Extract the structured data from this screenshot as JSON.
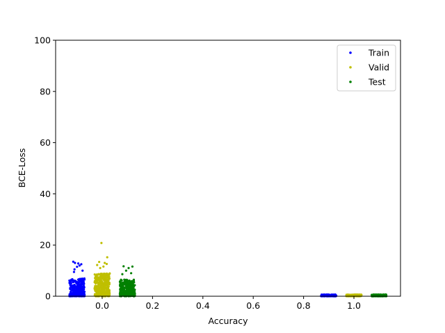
{
  "chart_data": {
    "type": "scatter",
    "title": "",
    "xlabel": "Accuracy",
    "ylabel": "BCE-Loss",
    "xlim": [
      -0.185,
      1.185
    ],
    "ylim": [
      0,
      100
    ],
    "xticks": [
      0.0,
      0.2,
      0.4,
      0.6,
      0.8,
      1.0
    ],
    "xtick_labels": [
      "0.0",
      "0.2",
      "0.4",
      "0.6",
      "0.8",
      "1.0"
    ],
    "yticks": [
      0,
      20,
      40,
      60,
      80,
      100
    ],
    "ytick_labels": [
      "0",
      "20",
      "40",
      "60",
      "80",
      "100"
    ],
    "grid": false,
    "legend_position": "top-right",
    "series": [
      {
        "name": "Train",
        "color": "#0000ff",
        "clusters": [
          {
            "x_center": -0.1,
            "x_spread": 0.03,
            "y_max": 13.5,
            "typical_max": 7,
            "n": 320
          },
          {
            "x_center": 0.9,
            "x_spread": 0.03,
            "y_max": 0.7,
            "typical_max": 0.7,
            "n": 160
          }
        ],
        "outliers": [
          {
            "x": -0.115,
            "y": 13.5
          },
          {
            "x": -0.108,
            "y": 13.0
          },
          {
            "x": -0.095,
            "y": 12.8
          },
          {
            "x": -0.083,
            "y": 12.5
          },
          {
            "x": -0.09,
            "y": 12.0
          },
          {
            "x": -0.1,
            "y": 11.5
          },
          {
            "x": -0.11,
            "y": 10.5
          },
          {
            "x": -0.078,
            "y": 10.0
          },
          {
            "x": -0.112,
            "y": 9.5
          }
        ]
      },
      {
        "name": "Valid",
        "color": "#bfbf00",
        "clusters": [
          {
            "x_center": 0.0,
            "x_spread": 0.03,
            "y_max": 13.5,
            "typical_max": 9,
            "n": 360
          },
          {
            "x_center": 1.0,
            "x_spread": 0.03,
            "y_max": 0.7,
            "typical_max": 0.7,
            "n": 160
          }
        ],
        "outliers": [
          {
            "x": -0.003,
            "y": 20.8
          },
          {
            "x": 0.02,
            "y": 15.2
          },
          {
            "x": -0.012,
            "y": 13.4
          },
          {
            "x": 0.01,
            "y": 13.0
          },
          {
            "x": 0.018,
            "y": 12.6
          },
          {
            "x": -0.02,
            "y": 12.2
          },
          {
            "x": 0.005,
            "y": 11.6
          },
          {
            "x": -0.008,
            "y": 11.0
          }
        ]
      },
      {
        "name": "Test",
        "color": "#008000",
        "clusters": [
          {
            "x_center": 0.1,
            "x_spread": 0.03,
            "y_max": 11.8,
            "typical_max": 6.5,
            "n": 320
          },
          {
            "x_center": 1.1,
            "x_spread": 0.03,
            "y_max": 0.7,
            "typical_max": 0.7,
            "n": 160
          }
        ],
        "outliers": [
          {
            "x": 0.085,
            "y": 11.7
          },
          {
            "x": 0.12,
            "y": 11.6
          },
          {
            "x": 0.105,
            "y": 11.0
          },
          {
            "x": 0.095,
            "y": 10.0
          },
          {
            "x": 0.115,
            "y": 9.0
          },
          {
            "x": 0.08,
            "y": 8.6
          }
        ]
      }
    ]
  }
}
